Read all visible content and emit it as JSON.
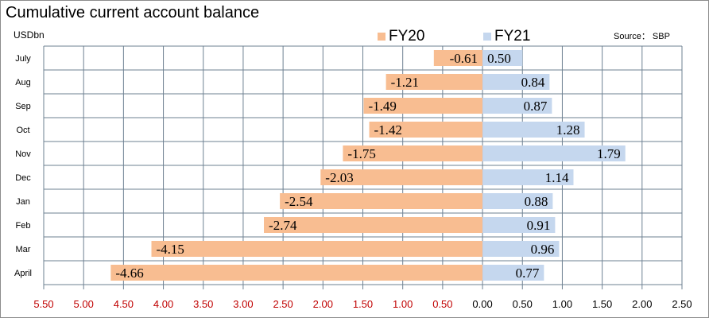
{
  "chart_data": {
    "type": "bar",
    "orientation": "horizontal",
    "title": "Cumulative current account balance",
    "ylabel": "USDbn",
    "source": "Source： SBP",
    "categories": [
      "July",
      "Aug",
      "Sep",
      "Oct",
      "Nov",
      "Dec",
      "Jan",
      "Feb",
      "Mar",
      "April"
    ],
    "series": [
      {
        "name": "FY20",
        "color": "#f8bd91",
        "values": [
          -0.61,
          -1.21,
          -1.49,
          -1.42,
          -1.75,
          -2.03,
          -2.54,
          -2.74,
          -4.15,
          -4.66
        ]
      },
      {
        "name": "FY21",
        "color": "#c5d7ee",
        "values": [
          0.5,
          0.84,
          0.87,
          1.28,
          1.79,
          1.14,
          0.88,
          0.91,
          0.96,
          0.77
        ]
      }
    ],
    "data_labels": {
      "FY20": [
        "-0.61",
        "-1.21",
        "-1.49",
        "-1.42",
        "-1.75",
        "-2.03",
        "-2.54",
        "-2.74",
        "-4.15",
        "-4.66"
      ],
      "FY21": [
        "0.50",
        "0.84",
        "0.87",
        "1.28",
        "1.79",
        "1.14",
        "0.88",
        "0.91",
        "0.96",
        "0.77"
      ]
    },
    "xlim": [
      -5.5,
      2.5
    ],
    "xticks": [
      -5.5,
      -5,
      -4.5,
      -4,
      -3.5,
      -3,
      -2.5,
      -2,
      -1.5,
      -1,
      -0.5,
      0,
      0.5,
      1,
      1.5,
      2,
      2.5
    ],
    "xtick_labels": [
      "5.50",
      "5.00",
      "4.50",
      "4.00",
      "3.50",
      "3.00",
      "2.50",
      "2.00",
      "1.50",
      "1.00",
      "0.50",
      "0.00",
      "0.50",
      "1.00",
      "1.50",
      "2.00",
      "2.50"
    ],
    "negative_tick_color": "#c00000",
    "grid": true,
    "legend": "top"
  }
}
